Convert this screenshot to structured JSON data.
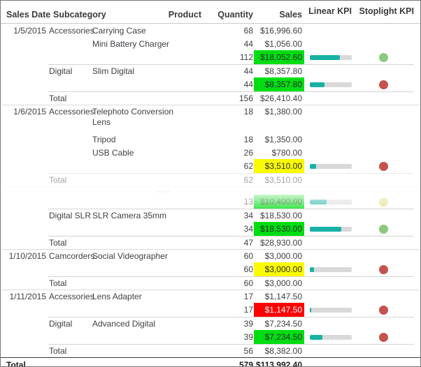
{
  "table": {
    "columns": [
      "Sales Date",
      "Subcategory",
      "Product",
      "Quantity",
      "Sales",
      "Linear KPI",
      "Stoplight KPI"
    ],
    "rows": [
      {
        "type": "detail",
        "date": "1/5/2015",
        "subcategory": "Accessories",
        "product": "Carrying Case",
        "quantity": "68",
        "sales": "$16,996.60"
      },
      {
        "type": "detail",
        "product": "Mini Battery Charger",
        "quantity": "44",
        "sales": "$1,056.00"
      },
      {
        "type": "subtotal",
        "quantity": "112",
        "sales": "$18,052.60",
        "salesBg": "green",
        "kpi": 72,
        "stoplight": "green"
      },
      {
        "type": "detail",
        "subcategory": "Digital",
        "product": "Slim Digital",
        "quantity": "44",
        "sales": "$8,357.80",
        "border": "partial"
      },
      {
        "type": "subtotal",
        "quantity": "44",
        "sales": "$8,357.80",
        "salesBg": "green",
        "kpi": 35,
        "stoplight": "red"
      },
      {
        "type": "group-total",
        "subcategory": "Total",
        "quantity": "156",
        "sales": "$26,410.40",
        "border": "partial"
      },
      {
        "type": "detail",
        "tall": true,
        "date": "1/6/2015",
        "subcategory": "Accessories",
        "product": "Telephoto Conversion Lens",
        "quantity": "18",
        "sales": "$1,380.00",
        "border": "full"
      },
      {
        "type": "detail",
        "product": "Tripod",
        "quantity": "18",
        "sales": "$1,350.00"
      },
      {
        "type": "detail",
        "product": "USB Cable",
        "quantity": "26",
        "sales": "$780.00"
      },
      {
        "type": "subtotal",
        "quantity": "62",
        "sales": "$3,510.00",
        "salesBg": "yellow",
        "kpi": 15,
        "stoplight": "red"
      },
      {
        "type": "group-total",
        "subcategory": "Total",
        "quantity": "62",
        "sales": "$3,510.00",
        "border": "partial",
        "fade": "50"
      },
      {
        "type": "spacer",
        "border": "full",
        "fade": "80"
      },
      {
        "type": "subtotal",
        "quantity": "13",
        "sales": "$10,400.00",
        "salesBg": "green",
        "kpi": 40,
        "stoplight": "yellow",
        "fade": "grad"
      },
      {
        "type": "detail",
        "subcategory": "Digital SLR",
        "product": "SLR Camera 35mm",
        "quantity": "34",
        "sales": "$18,530.00",
        "border": "partial"
      },
      {
        "type": "subtotal",
        "quantity": "34",
        "sales": "$18,530.00",
        "salesBg": "green",
        "kpi": 75,
        "stoplight": "green"
      },
      {
        "type": "group-total",
        "subcategory": "Total",
        "quantity": "47",
        "sales": "$28,930.00",
        "border": "partial"
      },
      {
        "type": "detail",
        "date": "1/10/2015",
        "subcategory": "Camcorders",
        "product": "Social Videographer",
        "quantity": "60",
        "sales": "$3,000.00",
        "border": "full"
      },
      {
        "type": "subtotal",
        "quantity": "60",
        "sales": "$3,000.00",
        "salesBg": "yellow",
        "kpi": 10,
        "stoplight": "red"
      },
      {
        "type": "group-total",
        "subcategory": "Total",
        "quantity": "60",
        "sales": "$3,000.00",
        "border": "partial"
      },
      {
        "type": "detail",
        "date": "1/11/2015",
        "subcategory": "Accessories",
        "product": "Lens Adapter",
        "quantity": "17",
        "sales": "$1,147.50",
        "border": "full"
      },
      {
        "type": "subtotal",
        "quantity": "17",
        "sales": "$1,147.50",
        "salesBg": "red",
        "kpi": 4,
        "stoplight": "red"
      },
      {
        "type": "detail",
        "subcategory": "Digital",
        "product": "Advanced Digital",
        "quantity": "39",
        "sales": "$7,234.50",
        "border": "partial"
      },
      {
        "type": "subtotal",
        "quantity": "39",
        "sales": "$7,234.50",
        "salesBg": "green",
        "kpi": 30,
        "stoplight": "red"
      },
      {
        "type": "group-total",
        "subcategory": "Total",
        "quantity": "56",
        "sales": "$8,382.00",
        "border": "partial"
      },
      {
        "type": "grand-total",
        "date": "Total",
        "quantity": "579",
        "sales": "$113,992.40",
        "border": "dark"
      }
    ]
  },
  "colors": {
    "sales_green": "#00de12",
    "sales_yellow": "#fbfb00",
    "sales_red": "#ff0000",
    "kpi_bar_fill": "#17b1a5",
    "kpi_bar_track": "#d9d9d9",
    "stoplight_green": "#8cc97e",
    "stoplight_red": "#c4534f",
    "stoplight_yellow": "#e3da7e"
  }
}
